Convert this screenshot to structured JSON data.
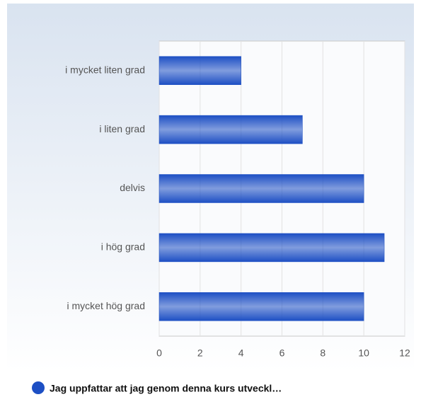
{
  "chart_data": {
    "type": "bar",
    "orientation": "horizontal",
    "categories": [
      "i mycket liten grad",
      "i liten grad",
      "delvis",
      "i hög grad",
      "i mycket hög grad"
    ],
    "series": [
      {
        "name": "Jag uppfattar att jag genom denna kurs utveckl…",
        "color": "#1d4fc4",
        "values": [
          4,
          7,
          10,
          11,
          10
        ]
      }
    ],
    "xlim": [
      0,
      12
    ],
    "xticks": [
      0,
      2,
      4,
      6,
      8,
      10,
      12
    ],
    "grid": true,
    "legend": "bottom"
  }
}
